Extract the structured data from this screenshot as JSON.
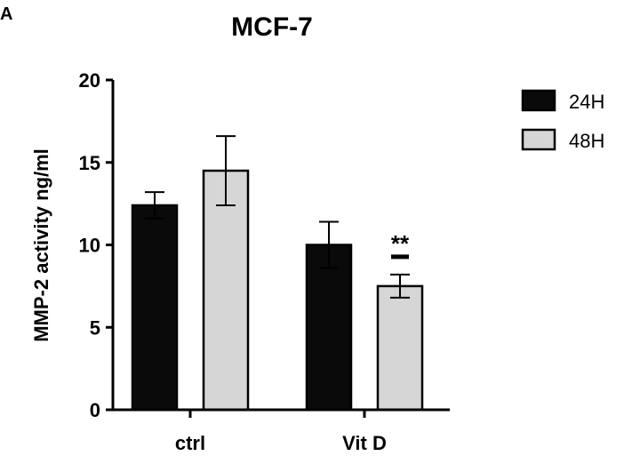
{
  "panel_label": "A",
  "chart_data": {
    "type": "bar",
    "title": "MCF-7",
    "xlabel": "",
    "ylabel": "MMP-2 activity ng/ml",
    "ylim": [
      0,
      20
    ],
    "yticks": [
      0,
      5,
      10,
      15,
      20
    ],
    "categories": [
      "ctrl",
      "Vit D"
    ],
    "series": [
      {
        "name": "24H",
        "values": [
          12.4,
          10.0
        ],
        "errors": [
          0.8,
          1.4
        ],
        "color": "#0a0a0a"
      },
      {
        "name": "48H",
        "values": [
          14.5,
          7.5
        ],
        "errors": [
          2.1,
          0.7
        ],
        "color": "#d6d6d6"
      }
    ],
    "annotations": [
      {
        "category": "Vit D",
        "series": "48H",
        "text": "**"
      }
    ],
    "legend_position": "right",
    "grid": false
  }
}
